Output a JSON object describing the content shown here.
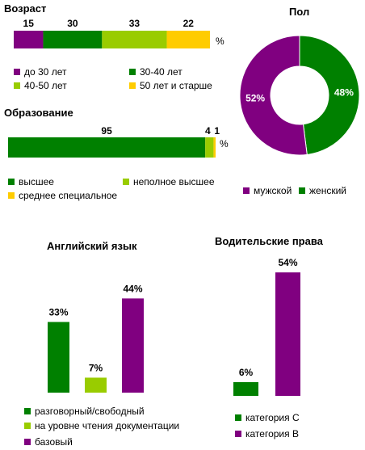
{
  "colors": {
    "purple": "#800080",
    "green": "#008000",
    "lightgreen": "#99cc00",
    "yellow": "#ffcc00"
  },
  "chart_data": [
    {
      "id": "age",
      "type": "bar",
      "orientation": "horizontal-stacked",
      "title": "Возраст",
      "unit": "%",
      "series": [
        {
          "name": "до 30 лет",
          "value": 15,
          "color": "#800080"
        },
        {
          "name": "30-40 лет",
          "value": 30,
          "color": "#008000"
        },
        {
          "name": "40-50 лет",
          "value": 33,
          "color": "#99cc00"
        },
        {
          "name": "50 лет и старше",
          "value": 22,
          "color": "#ffcc00"
        }
      ]
    },
    {
      "id": "education",
      "type": "bar",
      "orientation": "horizontal-stacked",
      "title": "Образование",
      "unit": "%",
      "series": [
        {
          "name": "высшее",
          "value": 95,
          "color": "#008000"
        },
        {
          "name": "неполное высшее",
          "value": 4,
          "color": "#99cc00"
        },
        {
          "name": "среднее специальное",
          "value": 1,
          "color": "#ffcc00"
        }
      ]
    },
    {
      "id": "gender",
      "type": "pie",
      "style": "donut",
      "title": "Пол",
      "slices": [
        {
          "name": "женский",
          "value": 48,
          "label": "48%",
          "color": "#008000"
        },
        {
          "name": "мужской",
          "value": 52,
          "label": "52%",
          "color": "#800080"
        }
      ],
      "legend": [
        {
          "name": "мужской",
          "color": "#800080"
        },
        {
          "name": "женский",
          "color": "#008000"
        }
      ]
    },
    {
      "id": "english",
      "type": "bar",
      "title": "Английский язык",
      "ylim": [
        0,
        50
      ],
      "series": [
        {
          "name": "разговорный/свободный",
          "value": 33,
          "label": "33%",
          "color": "#008000"
        },
        {
          "name": "на уровне чтения документации",
          "value": 7,
          "label": "7%",
          "color": "#99cc00"
        },
        {
          "name": "базовый",
          "value": 44,
          "label": "44%",
          "color": "#800080"
        }
      ]
    },
    {
      "id": "license",
      "type": "bar",
      "title": "Водительские права",
      "ylim": [
        0,
        60
      ],
      "series": [
        {
          "name": "категория С",
          "value": 6,
          "label": "6%",
          "color": "#008000"
        },
        {
          "name": "категория В",
          "value": 54,
          "label": "54%",
          "color": "#800080"
        }
      ]
    }
  ]
}
